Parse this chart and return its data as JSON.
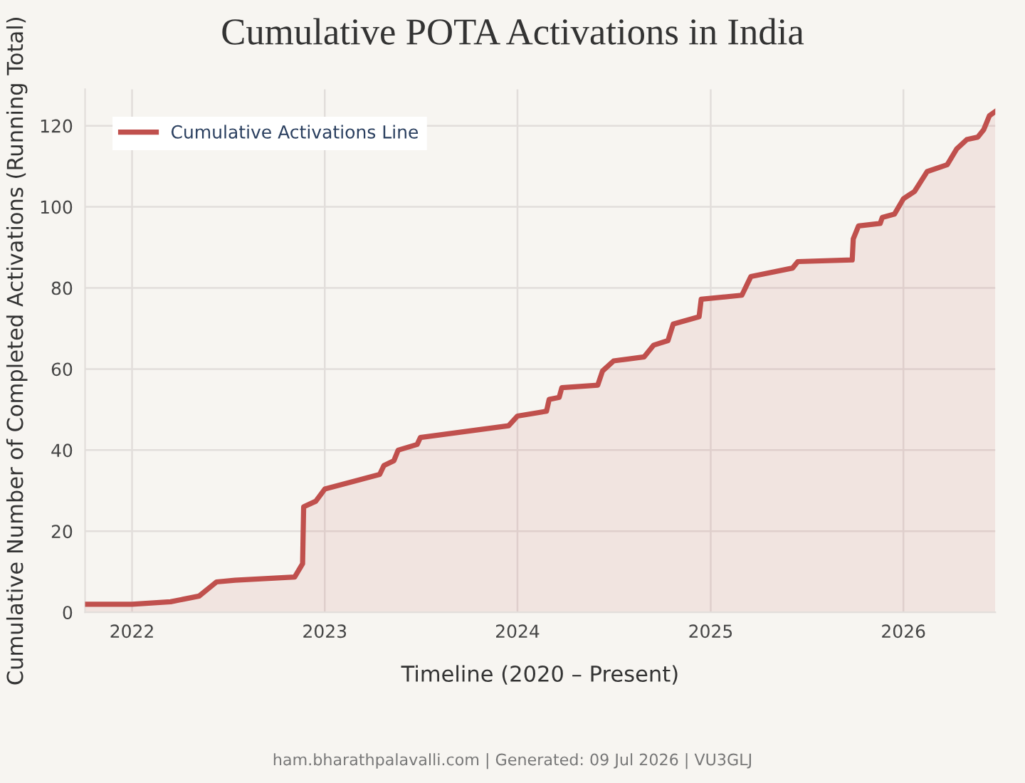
{
  "chart_data": {
    "type": "area",
    "title": "Cumulative POTA Activations in India",
    "xlabel": "Timeline (2020 – Present)",
    "ylabel": "Cumulative Number of Completed Activations (Running Total)",
    "annotations": [
      "ham.bharathpalavalli.com | Generated: 09 Jul 2026 | VU3GLJ"
    ],
    "series": [
      {
        "name": "Cumulative Activations Line",
        "color": "#c0504d",
        "x": [
          "2021-10-04",
          "2022-01-01",
          "2022-03-15",
          "2022-05-08",
          "2022-06-10",
          "2022-07-15",
          "2022-11-05",
          "2022-11-20",
          "2022-11-22",
          "2022-12-15",
          "2023-01-01",
          "2023-04-15",
          "2023-04-23",
          "2023-05-12",
          "2023-05-20",
          "2023-06-25",
          "2023-07-01",
          "2023-12-15",
          "2024-01-01",
          "2024-02-25",
          "2024-03-01",
          "2024-03-20",
          "2024-03-25",
          "2024-06-01",
          "2024-06-10",
          "2024-07-01",
          "2024-08-28",
          "2024-09-15",
          "2024-10-12",
          "2024-10-22",
          "2024-12-10",
          "2024-12-14",
          "2025-03-01",
          "2025-03-18",
          "2025-06-05",
          "2025-06-15",
          "2025-09-26",
          "2025-09-28",
          "2025-10-08",
          "2025-11-18",
          "2025-11-22",
          "2025-12-15",
          "2026-01-01",
          "2026-01-22",
          "2026-02-15",
          "2026-03-25",
          "2026-04-12",
          "2026-05-01",
          "2026-05-22",
          "2026-06-02",
          "2026-06-13",
          "2026-06-24"
        ],
        "values": [
          2.0,
          2.0,
          2.6,
          4.0,
          7.5,
          7.9,
          8.7,
          12,
          26,
          27.4,
          30.4,
          34,
          36.2,
          37.4,
          40,
          41.4,
          43.1,
          46,
          48.4,
          49.6,
          52.5,
          53,
          55.4,
          56,
          59.5,
          62,
          63,
          65.9,
          67,
          71.1,
          72.9,
          77.2,
          78.2,
          82.8,
          84.9,
          86.5,
          86.9,
          92.1,
          95.3,
          95.9,
          97.4,
          98.2,
          102,
          103.8,
          108.7,
          110.4,
          114.3,
          116.6,
          117.2,
          119,
          122.5,
          123.5
        ]
      }
    ],
    "xlim": [
      "2021-10-04",
      "2026-06-24"
    ],
    "xticks": [
      {
        "value": "2022-01-01",
        "label": "2022"
      },
      {
        "value": "2023-01-01",
        "label": "2023"
      },
      {
        "value": "2024-01-01",
        "label": "2024"
      },
      {
        "value": "2025-01-01",
        "label": "2025"
      },
      {
        "value": "2026-01-01",
        "label": "2026"
      }
    ],
    "ylim": [
      0,
      129
    ],
    "yticks": [
      0,
      20,
      40,
      60,
      80,
      100,
      120
    ],
    "grid": true,
    "legend": "top left",
    "line_style": "solid",
    "marker": "none"
  }
}
